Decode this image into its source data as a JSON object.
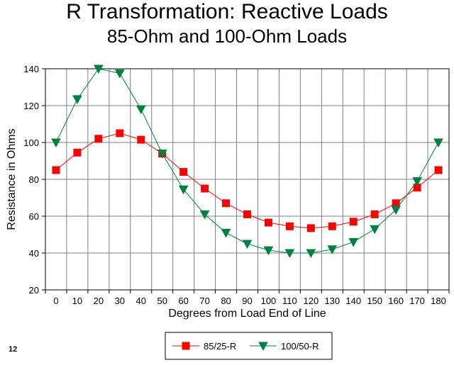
{
  "slide_number": "12",
  "chart_data": {
    "type": "line",
    "title": "R Transformation: Reactive Loads",
    "subtitle": "85-Ohm and 100-Ohm Loads",
    "xlabel": "Degrees from Load End of Line",
    "ylabel": "Resistance in Ohms",
    "categories": [
      "0",
      "10",
      "20",
      "30",
      "40",
      "50",
      "60",
      "70",
      "80",
      "90",
      "100",
      "110",
      "120",
      "130",
      "140",
      "150",
      "160",
      "170",
      "180"
    ],
    "ylim": [
      20,
      140
    ],
    "yticks": [
      20,
      40,
      60,
      80,
      100,
      120,
      140
    ],
    "grid": true,
    "legend_position": "bottom",
    "series": [
      {
        "name": "85/25-R",
        "color": "#ff0000",
        "marker": "square",
        "values": [
          85,
          94.5,
          102,
          105,
          101.5,
          94,
          84,
          75,
          67,
          61,
          56.5,
          54.5,
          53.5,
          54.5,
          57,
          61,
          67,
          75.5,
          85
        ]
      },
      {
        "name": "100/50-R",
        "color": "#008040",
        "marker": "triangle-down",
        "values": [
          100,
          123.5,
          140,
          137.5,
          118,
          94,
          74.5,
          61,
          51,
          45,
          41.5,
          40,
          40,
          42,
          46,
          53,
          63.5,
          79,
          100
        ]
      }
    ]
  }
}
